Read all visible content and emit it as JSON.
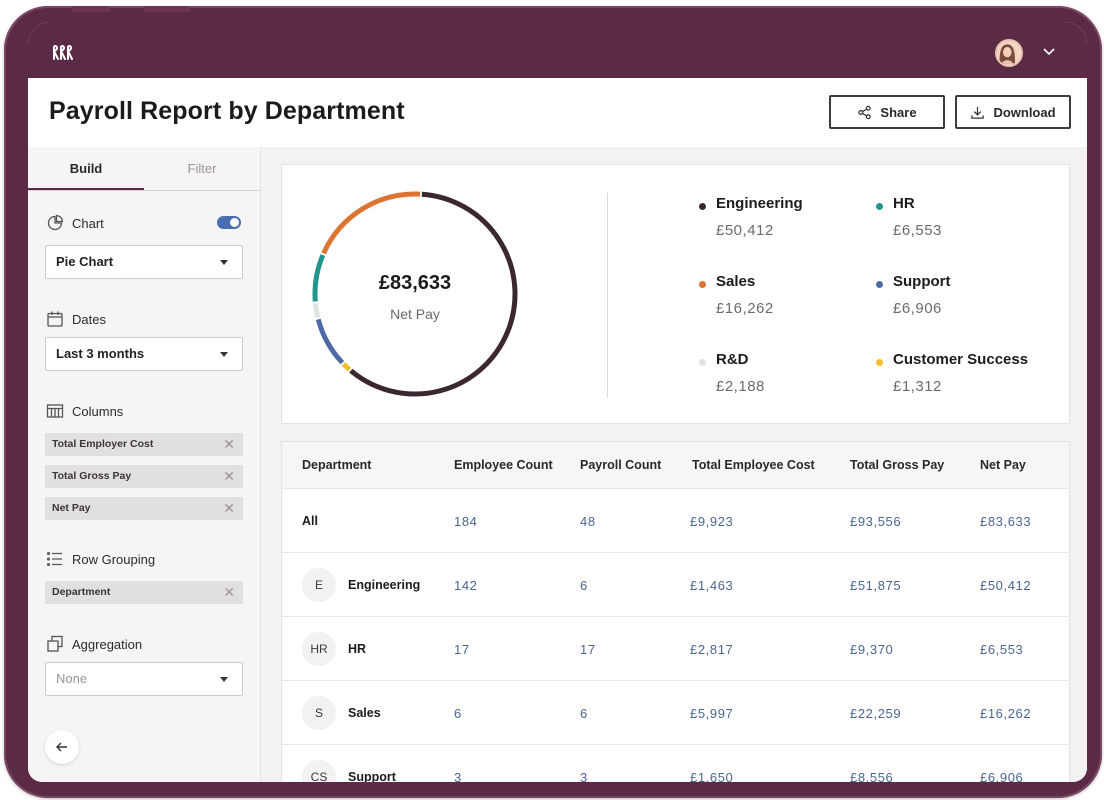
{
  "header": {
    "title": "Payroll Report by Department",
    "share_label": "Share",
    "download_label": "Download"
  },
  "sidebar": {
    "tabs": [
      {
        "label": "Build",
        "active": true
      },
      {
        "label": "Filter",
        "active": false
      }
    ],
    "chart": {
      "label": "Chart",
      "enabled": true,
      "value": "Pie Chart"
    },
    "dates": {
      "label": "Dates",
      "value": "Last 3 months"
    },
    "columns": {
      "label": "Columns",
      "chips": [
        "Total Employer Cost",
        "Total Gross Pay",
        "Net Pay"
      ]
    },
    "row_grouping": {
      "label": "Row Grouping",
      "chips": [
        "Department"
      ]
    },
    "aggregation": {
      "label": "Aggregation",
      "value": "None"
    }
  },
  "summary": {
    "net_value": "£83,633",
    "net_label": "Net Pay",
    "legend": [
      {
        "name": "Engineering",
        "value": "£50,412",
        "color": "#3a272f"
      },
      {
        "name": "HR",
        "value": "£6,553",
        "color": "#23968c"
      },
      {
        "name": "Sales",
        "value": "£16,262",
        "color": "#dd7532"
      },
      {
        "name": "Support",
        "value": "£6,906",
        "color": "#4d6aa6"
      },
      {
        "name": "R&D",
        "value": "£2,188",
        "color": "#dfe3e1"
      },
      {
        "name": "Customer Success",
        "value": "£1,312",
        "color": "#f2bd2c"
      }
    ]
  },
  "chart_data": {
    "type": "pie",
    "title": "",
    "categories": [
      "Engineering",
      "Customer Success",
      "Support",
      "R&D",
      "HR",
      "Sales"
    ],
    "values": [
      50412,
      1312,
      6906,
      2188,
      6553,
      16262
    ],
    "colors": [
      "#3a272f",
      "#f2bd2c",
      "#4d6aa6",
      "#dfe3e1",
      "#23968c",
      "#dd7532"
    ]
  },
  "table": {
    "columns": [
      "Department",
      "Employee Count",
      "Payroll Count",
      "Total Employee Cost",
      "Total Gross Pay",
      "Net Pay"
    ],
    "rows": [
      {
        "badge": "",
        "department": "All",
        "employee_count": "184",
        "payroll_count": "48",
        "employee_cost": "£9,923",
        "gross_pay": "£93,556",
        "net_pay": "£83,633"
      },
      {
        "badge": "E",
        "department": "Engineering",
        "employee_count": "142",
        "payroll_count": "6",
        "employee_cost": "£1,463",
        "gross_pay": "£51,875",
        "net_pay": "£50,412"
      },
      {
        "badge": "HR",
        "department": "HR",
        "employee_count": "17",
        "payroll_count": "17",
        "employee_cost": "£2,817",
        "gross_pay": "£9,370",
        "net_pay": "£6,553"
      },
      {
        "badge": "S",
        "department": "Sales",
        "employee_count": "6",
        "payroll_count": "6",
        "employee_cost": "£5,997",
        "gross_pay": "£22,259",
        "net_pay": "£16,262"
      },
      {
        "badge": "CS",
        "department": "Support",
        "employee_count": "3",
        "payroll_count": "3",
        "employee_cost": "£1,650",
        "gross_pay": "£8,556",
        "net_pay": "£6,906"
      }
    ]
  },
  "icons": {
    "logo": "brand-logo-icon",
    "share": "share-icon",
    "download": "download-icon",
    "chart": "chart-icon",
    "dates": "calendar-icon",
    "columns": "columns-icon",
    "row_grouping": "list-icon",
    "aggregation": "layers-icon",
    "back": "arrow-left-icon"
  }
}
